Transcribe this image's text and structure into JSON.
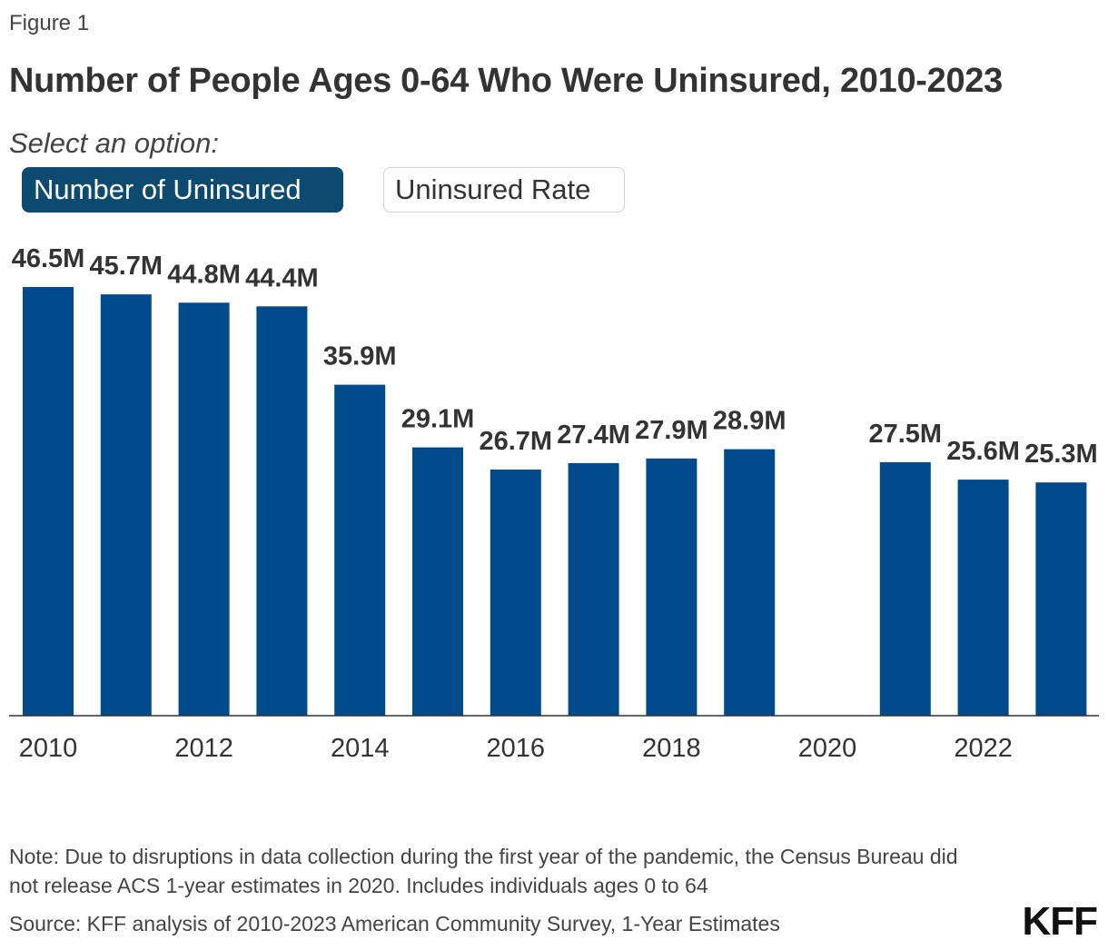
{
  "figure_label": "Figure 1",
  "title": "Number of People Ages 0-64 Who Were Uninsured, 2010-2023",
  "controls": {
    "prompt": "Select an option:",
    "options": [
      "Number of Uninsured",
      "Uninsured Rate"
    ],
    "selected": "Number of Uninsured"
  },
  "colors": {
    "bar": "#004a8c",
    "active_button": "#0d4a70"
  },
  "chart_data": {
    "type": "bar",
    "title": "Number of People Ages 0-64 Who Were Uninsured, 2010-2023",
    "categories": [
      "2010",
      "2011",
      "2012",
      "2013",
      "2014",
      "2015",
      "2016",
      "2017",
      "2018",
      "2019",
      "2020",
      "2021",
      "2022",
      "2023"
    ],
    "values": [
      46.5,
      45.7,
      44.8,
      44.4,
      35.9,
      29.1,
      26.7,
      27.4,
      27.9,
      28.9,
      null,
      27.5,
      25.6,
      25.3
    ],
    "labels": [
      "46.5M",
      "45.7M",
      "44.8M",
      "44.4M",
      "35.9M",
      "29.1M",
      "26.7M",
      "27.4M",
      "27.9M",
      "28.9M",
      "",
      "27.5M",
      "25.6M",
      "25.3M"
    ],
    "unit": "M",
    "x_ticks": [
      "2010",
      "2012",
      "2014",
      "2016",
      "2018",
      "2020",
      "2022"
    ],
    "xlabel": "",
    "ylabel": "",
    "ylim": [
      0,
      46.5
    ],
    "grid": false
  },
  "footer": {
    "note": "Note: Due to disruptions in data collection during the first year of the pandemic, the Census Bureau did not release ACS 1-year estimates in 2020. Includes individuals ages 0 to 64",
    "source": "Source: KFF analysis of 2010-2023 American Community Survey, 1-Year Estimates",
    "logo": "KFF"
  }
}
